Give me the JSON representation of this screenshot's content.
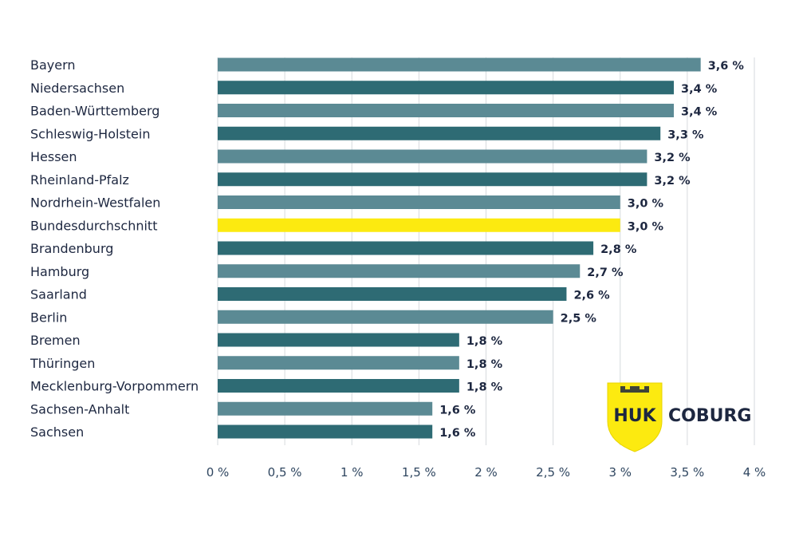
{
  "chart_data": {
    "type": "bar",
    "orientation": "horizontal",
    "categories": [
      "Bayern",
      "Niedersachsen",
      "Baden-Württemberg",
      "Schleswig-Holstein",
      "Hessen",
      "Rheinland-Pfalz",
      "Nordrhein-Westfalen",
      "Bundesdurchschnitt",
      "Brandenburg",
      "Hamburg",
      "Saarland",
      "Berlin",
      "Bremen",
      "Thüringen",
      "Mecklenburg-Vorpommern",
      "Sachsen-Anhalt",
      "Sachsen"
    ],
    "values": [
      3.6,
      3.4,
      3.4,
      3.3,
      3.2,
      3.2,
      3.0,
      3.0,
      2.8,
      2.7,
      2.6,
      2.5,
      1.8,
      1.8,
      1.8,
      1.6,
      1.6
    ],
    "value_labels": [
      "3,6 %",
      "3,4 %",
      "3,4 %",
      "3,3 %",
      "3,2 %",
      "3,2 %",
      "3,0 %",
      "3,0 %",
      "2,8 %",
      "2,7 %",
      "2,6 %",
      "2,5 %",
      "1,8 %",
      "1,8 %",
      "1,8 %",
      "1,6 %",
      "1,6 %"
    ],
    "highlight_category": "Bundesdurchschnitt",
    "xlim": [
      0,
      4
    ],
    "x_ticks": [
      0,
      0.5,
      1,
      1.5,
      2,
      2.5,
      3,
      3.5,
      4
    ],
    "x_tick_labels": [
      "0 %",
      "0,5 %",
      "1 %",
      "1,5 %",
      "2 %",
      "2,5 %",
      "3 %",
      "3,5 %",
      "4 %"
    ],
    "grid": "vertical",
    "colors": {
      "bar_light": "#5b8a94",
      "bar_dark": "#2e6b74",
      "highlight": "#fcea10",
      "grid": "#d6dadd"
    }
  },
  "logo": {
    "left_text": "HUK",
    "right_text": "COBURG",
    "shield_color": "#fcea10",
    "text_color": "#1d2740"
  }
}
